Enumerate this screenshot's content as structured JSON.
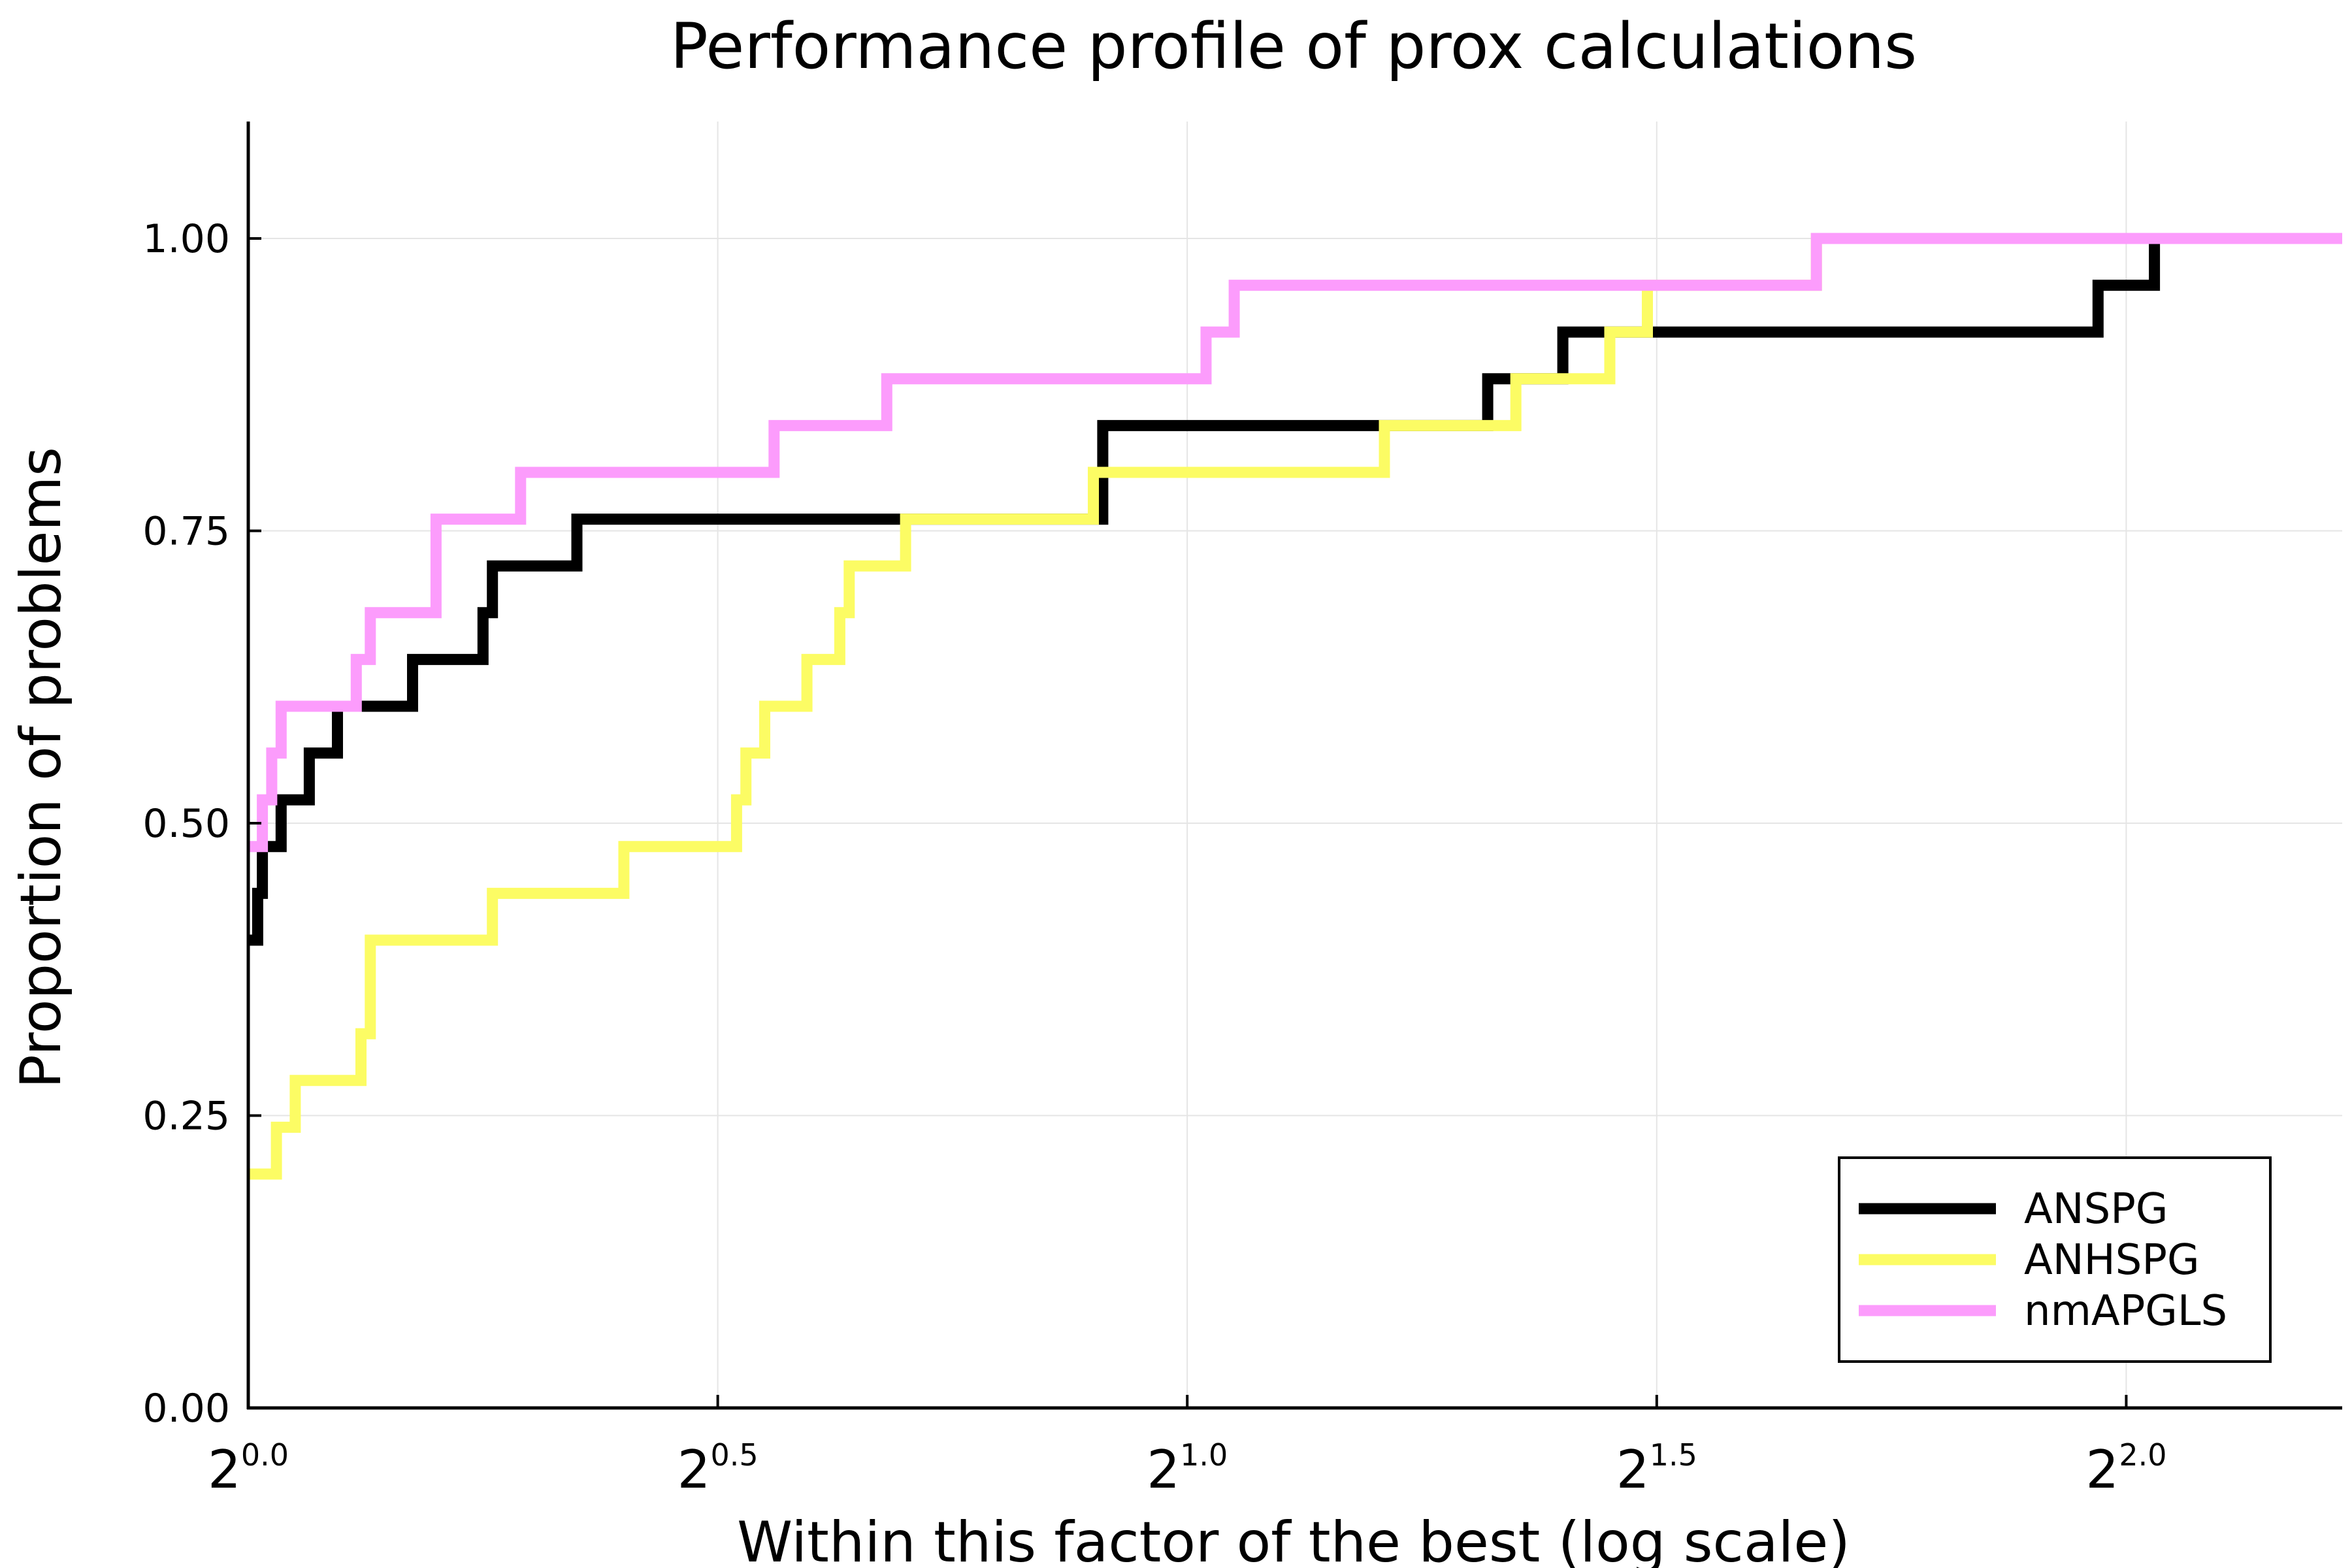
{
  "chart_data": {
    "type": "line",
    "step": true,
    "title": "Performance profile of prox calculations",
    "xlabel": "Within this factor of the best (log scale)",
    "ylabel": "Proportion of problems",
    "x_scale": "log2",
    "xlim_exponent": [
      0.0,
      2.23
    ],
    "ylim": [
      0.0,
      1.1
    ],
    "grid": true,
    "legend_position": "bottom-right",
    "xtick_labels": [
      {
        "base": "2",
        "exp": "0.0",
        "value": 0.0
      },
      {
        "base": "2",
        "exp": "0.5",
        "value": 0.5
      },
      {
        "base": "2",
        "exp": "1.0",
        "value": 1.0
      },
      {
        "base": "2",
        "exp": "1.5",
        "value": 1.5
      },
      {
        "base": "2",
        "exp": "2.0",
        "value": 2.0
      }
    ],
    "ytick_labels": [
      {
        "label": "0.00",
        "value": 0.0
      },
      {
        "label": "0.25",
        "value": 0.25
      },
      {
        "label": "0.50",
        "value": 0.5
      },
      {
        "label": "0.75",
        "value": 0.75
      },
      {
        "label": "1.00",
        "value": 1.0
      }
    ],
    "series": [
      {
        "name": "ANSPG",
        "color": "#000000",
        "x_log2": [
          0.0,
          0.01,
          0.015,
          0.035,
          0.065,
          0.095,
          0.175,
          0.25,
          0.26,
          0.35,
          0.91,
          1.32,
          1.4,
          1.97,
          2.03,
          2.23
        ],
        "y": [
          0.4,
          0.44,
          0.48,
          0.52,
          0.56,
          0.6,
          0.64,
          0.68,
          0.72,
          0.76,
          0.84,
          0.88,
          0.92,
          0.96,
          1.0,
          1.0
        ]
      },
      {
        "name": "ANHSPG",
        "color": "#fcfc64",
        "x_log2": [
          0.0,
          0.03,
          0.05,
          0.12,
          0.13,
          0.26,
          0.4,
          0.52,
          0.53,
          0.55,
          0.595,
          0.63,
          0.64,
          0.7,
          0.9,
          1.21,
          1.35,
          1.45,
          1.49,
          1.67,
          2.23
        ],
        "y": [
          0.2,
          0.24,
          0.28,
          0.32,
          0.4,
          0.44,
          0.48,
          0.52,
          0.56,
          0.6,
          0.64,
          0.68,
          0.72,
          0.76,
          0.8,
          0.84,
          0.88,
          0.92,
          0.96,
          1.0,
          1.0
        ]
      },
      {
        "name": "nmAPGLS",
        "color": "#fc9cfc",
        "x_log2": [
          0.0,
          0.015,
          0.025,
          0.035,
          0.115,
          0.13,
          0.2,
          0.29,
          0.56,
          0.68,
          1.02,
          1.05,
          1.67,
          2.23
        ],
        "y": [
          0.48,
          0.52,
          0.56,
          0.6,
          0.64,
          0.68,
          0.76,
          0.8,
          0.84,
          0.88,
          0.92,
          0.96,
          1.0,
          1.0
        ]
      }
    ]
  }
}
